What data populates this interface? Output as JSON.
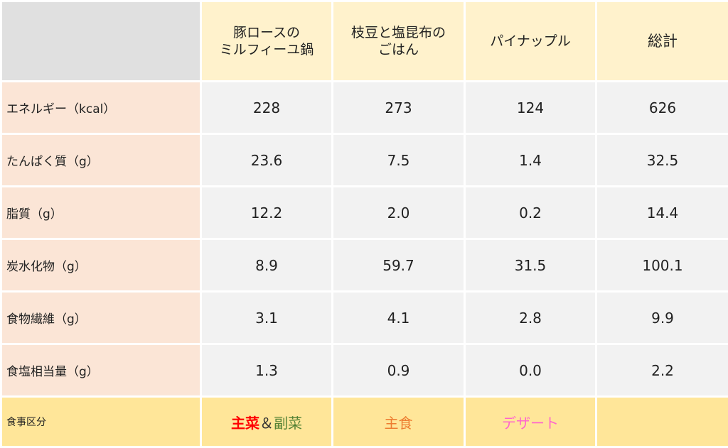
{
  "header": {
    "dishes": [
      {
        "line1": "豚ロースの",
        "line2": "ミルフィーユ鍋"
      },
      {
        "line1": "枝豆と塩昆布の",
        "line2": "ごはん"
      },
      {
        "line1": "パイナップル",
        "line2": ""
      }
    ],
    "total_label": "総計"
  },
  "rows": [
    {
      "label": "エネルギー（kcal）",
      "values": [
        "228",
        "273",
        "124",
        "626"
      ]
    },
    {
      "label": "たんぱく質（g）",
      "values": [
        "23.6",
        "7.5",
        "1.4",
        "32.5"
      ]
    },
    {
      "label": "脂質（g）",
      "values": [
        "12.2",
        "2.0",
        "0.2",
        "14.4"
      ]
    },
    {
      "label": "炭水化物（g）",
      "values": [
        "8.9",
        "59.7",
        "31.5",
        "100.1"
      ]
    },
    {
      "label": "食物繊維（g）",
      "values": [
        "3.1",
        "4.1",
        "2.8",
        "9.9"
      ]
    },
    {
      "label": "食塩相当量（g）",
      "values": [
        "1.3",
        "0.9",
        "0.0",
        "2.2"
      ]
    }
  ],
  "category": {
    "label": "食事区分",
    "dish1": {
      "part1": "主菜",
      "sep": "＆",
      "part2": "副菜"
    },
    "dish2": "主食",
    "dish3": "デザート",
    "total": ""
  },
  "colors": {
    "corner": "#e0e0e0",
    "header_bg": "#fff2cc",
    "row_label_bg": "#fbe5d6",
    "cell_bg": "#f2f2f2",
    "category_bg": "#ffe699",
    "main_dish": "#ff0000",
    "side_dish": "#548235",
    "staple": "#ed7d31",
    "dessert": "#ff66cc"
  }
}
